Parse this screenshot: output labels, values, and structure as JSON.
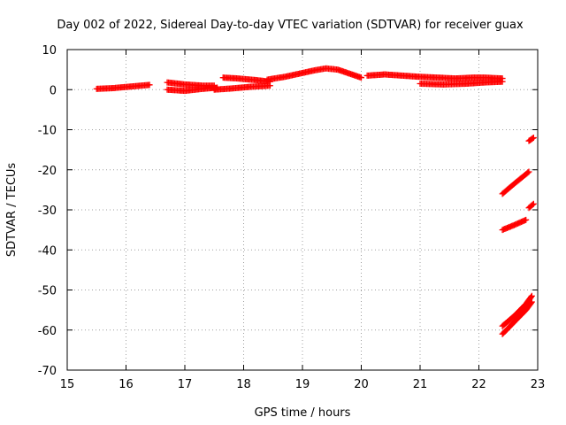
{
  "chart_data": {
    "type": "scatter",
    "title": "Day 002 of 2022, Sidereal Day-to-day VTEC variation (SDTVAR) for receiver guax",
    "xlabel": "GPS time / hours",
    "ylabel": "SDTVAR / TECUs",
    "xlim": [
      15,
      23
    ],
    "ylim": [
      -70,
      10
    ],
    "xticks": [
      "15",
      "16",
      "17",
      "18",
      "19",
      "20",
      "21",
      "22",
      "23"
    ],
    "yticks": [
      "10",
      "0",
      "-10",
      "-20",
      "-30",
      "-40",
      "-50",
      "-60",
      "-70"
    ],
    "grid": true,
    "marker": "plus",
    "series_color": "#ff0000",
    "series": [
      {
        "x": [
          15.5,
          15.8,
          16.1,
          16.4
        ],
        "y": [
          0.2,
          0.4,
          0.8,
          1.2
        ]
      },
      {
        "x": [
          16.7,
          17.0,
          17.3,
          17.5
        ],
        "y": [
          1.8,
          1.3,
          1.0,
          1.0
        ]
      },
      {
        "x": [
          16.7,
          17.0,
          17.3,
          17.55
        ],
        "y": [
          0.0,
          -0.3,
          0.2,
          0.5
        ]
      },
      {
        "x": [
          17.65,
          17.9,
          18.2,
          18.45
        ],
        "y": [
          3.0,
          2.8,
          2.4,
          2.0
        ]
      },
      {
        "x": [
          17.5,
          17.8,
          18.1,
          18.45
        ],
        "y": [
          0.0,
          0.3,
          0.7,
          1.0
        ]
      },
      {
        "x": [
          18.4,
          18.7,
          18.95,
          19.2,
          19.4,
          19.6,
          19.8,
          20.0
        ],
        "y": [
          2.5,
          3.2,
          4.0,
          4.8,
          5.3,
          5.0,
          4.0,
          3.0
        ]
      },
      {
        "x": [
          20.1,
          20.4,
          20.7,
          21.0,
          21.3,
          21.6,
          21.9,
          22.1,
          22.4
        ],
        "y": [
          3.5,
          3.8,
          3.5,
          3.2,
          3.0,
          2.8,
          3.0,
          3.0,
          2.8
        ]
      },
      {
        "x": [
          21.0,
          21.4,
          21.8,
          22.1,
          22.4
        ],
        "y": [
          1.5,
          1.3,
          1.5,
          1.8,
          2.0
        ]
      },
      {
        "x": [
          22.4,
          22.6,
          22.85
        ],
        "y": [
          -26.0,
          -23.5,
          -20.5
        ]
      },
      {
        "x": [
          22.4,
          22.6,
          22.8
        ],
        "y": [
          -35.0,
          -33.8,
          -32.5
        ]
      },
      {
        "x": [
          22.4,
          22.6,
          22.8,
          22.9
        ],
        "y": [
          -59.0,
          -56.5,
          -53.5,
          -51.5
        ]
      },
      {
        "x": [
          22.4,
          22.6,
          22.8,
          22.9
        ],
        "y": [
          -61.0,
          -58.0,
          -55.0,
          -53.0
        ]
      },
      {
        "x": [
          22.85,
          22.93
        ],
        "y": [
          -29.5,
          -28.5
        ]
      },
      {
        "x": [
          22.85,
          22.93
        ],
        "y": [
          -12.8,
          -12.0
        ]
      }
    ]
  }
}
